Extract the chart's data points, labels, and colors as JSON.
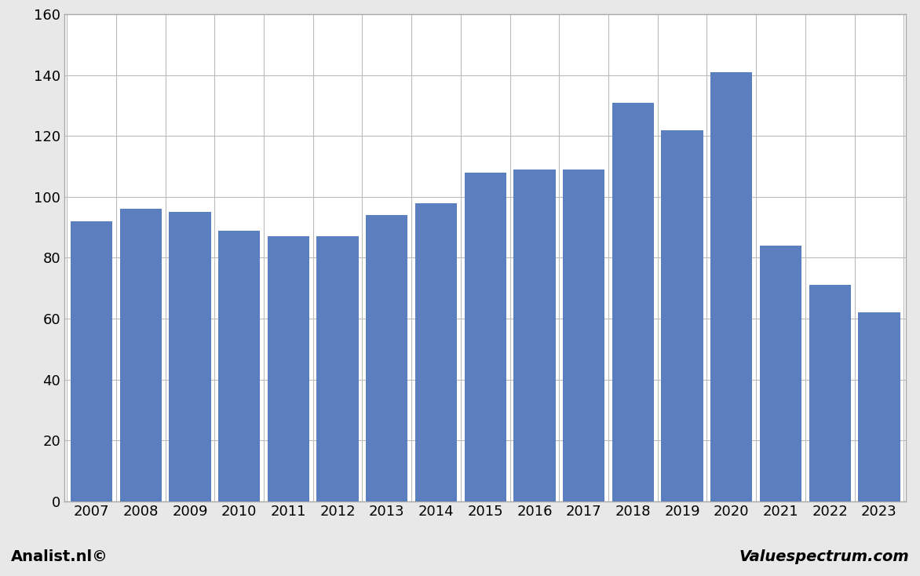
{
  "years": [
    2007,
    2008,
    2009,
    2010,
    2011,
    2012,
    2013,
    2014,
    2015,
    2016,
    2017,
    2018,
    2019,
    2020,
    2021,
    2022,
    2023
  ],
  "values": [
    92,
    96,
    95,
    89,
    87,
    87,
    94,
    98,
    108,
    109,
    109,
    131,
    122,
    141,
    84,
    71,
    62
  ],
  "bar_color": "#5b7fbe",
  "ylim": [
    0,
    160
  ],
  "yticks": [
    0,
    20,
    40,
    60,
    80,
    100,
    120,
    140,
    160
  ],
  "background_color": "#e8e8e8",
  "plot_bg_color": "#ffffff",
  "footer_bg_color": "#c8c8c8",
  "footer_left": "Analist.nl©",
  "footer_right": "Valuespectrum.com",
  "grid_color": "#bbbbbb",
  "spine_color": "#aaaaaa"
}
